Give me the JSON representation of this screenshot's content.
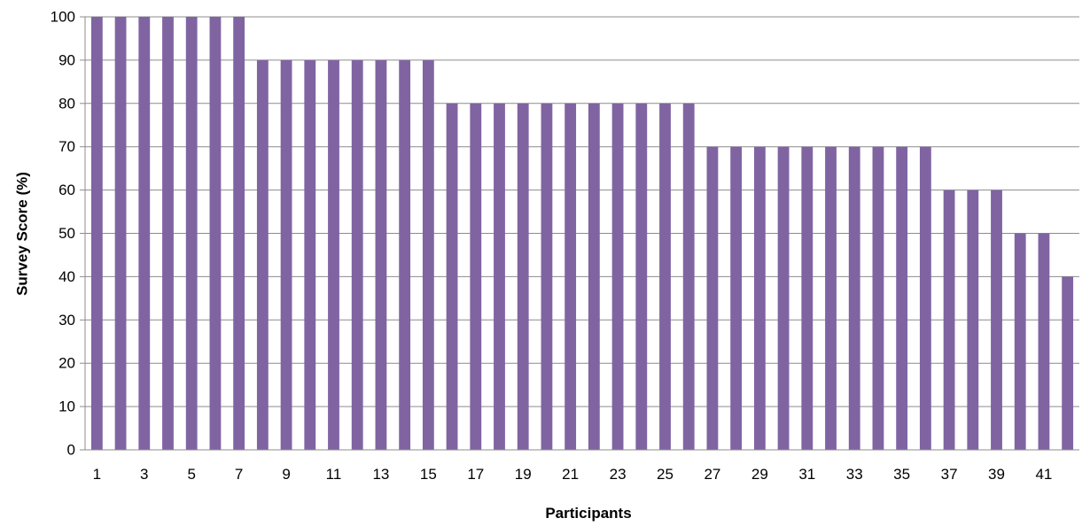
{
  "chart_data": {
    "type": "bar",
    "title": "",
    "xlabel": "Participants",
    "ylabel": "Survey Score (%)",
    "ylim": [
      0,
      100
    ],
    "yticks": [
      0,
      10,
      20,
      30,
      40,
      50,
      60,
      70,
      80,
      90,
      100
    ],
    "x_tick_labels": [
      "1",
      "3",
      "5",
      "7",
      "9",
      "11",
      "13",
      "15",
      "17",
      "19",
      "21",
      "23",
      "25",
      "27",
      "29",
      "31",
      "33",
      "35",
      "37",
      "39",
      "41"
    ],
    "grid": true,
    "legend": "none",
    "bar_color": "#8064a2",
    "categories": [
      1,
      2,
      3,
      4,
      5,
      6,
      7,
      8,
      9,
      10,
      11,
      12,
      13,
      14,
      15,
      16,
      17,
      18,
      19,
      20,
      21,
      22,
      23,
      24,
      25,
      26,
      27,
      28,
      29,
      30,
      31,
      32,
      33,
      34,
      35,
      36,
      37,
      38,
      39,
      40,
      41,
      42
    ],
    "values": [
      100,
      100,
      100,
      100,
      100,
      100,
      100,
      90,
      90,
      90,
      90,
      90,
      90,
      90,
      90,
      80,
      80,
      80,
      80,
      80,
      80,
      80,
      80,
      80,
      80,
      80,
      70,
      70,
      70,
      70,
      70,
      70,
      70,
      70,
      70,
      70,
      60,
      60,
      60,
      50,
      50,
      40
    ]
  }
}
